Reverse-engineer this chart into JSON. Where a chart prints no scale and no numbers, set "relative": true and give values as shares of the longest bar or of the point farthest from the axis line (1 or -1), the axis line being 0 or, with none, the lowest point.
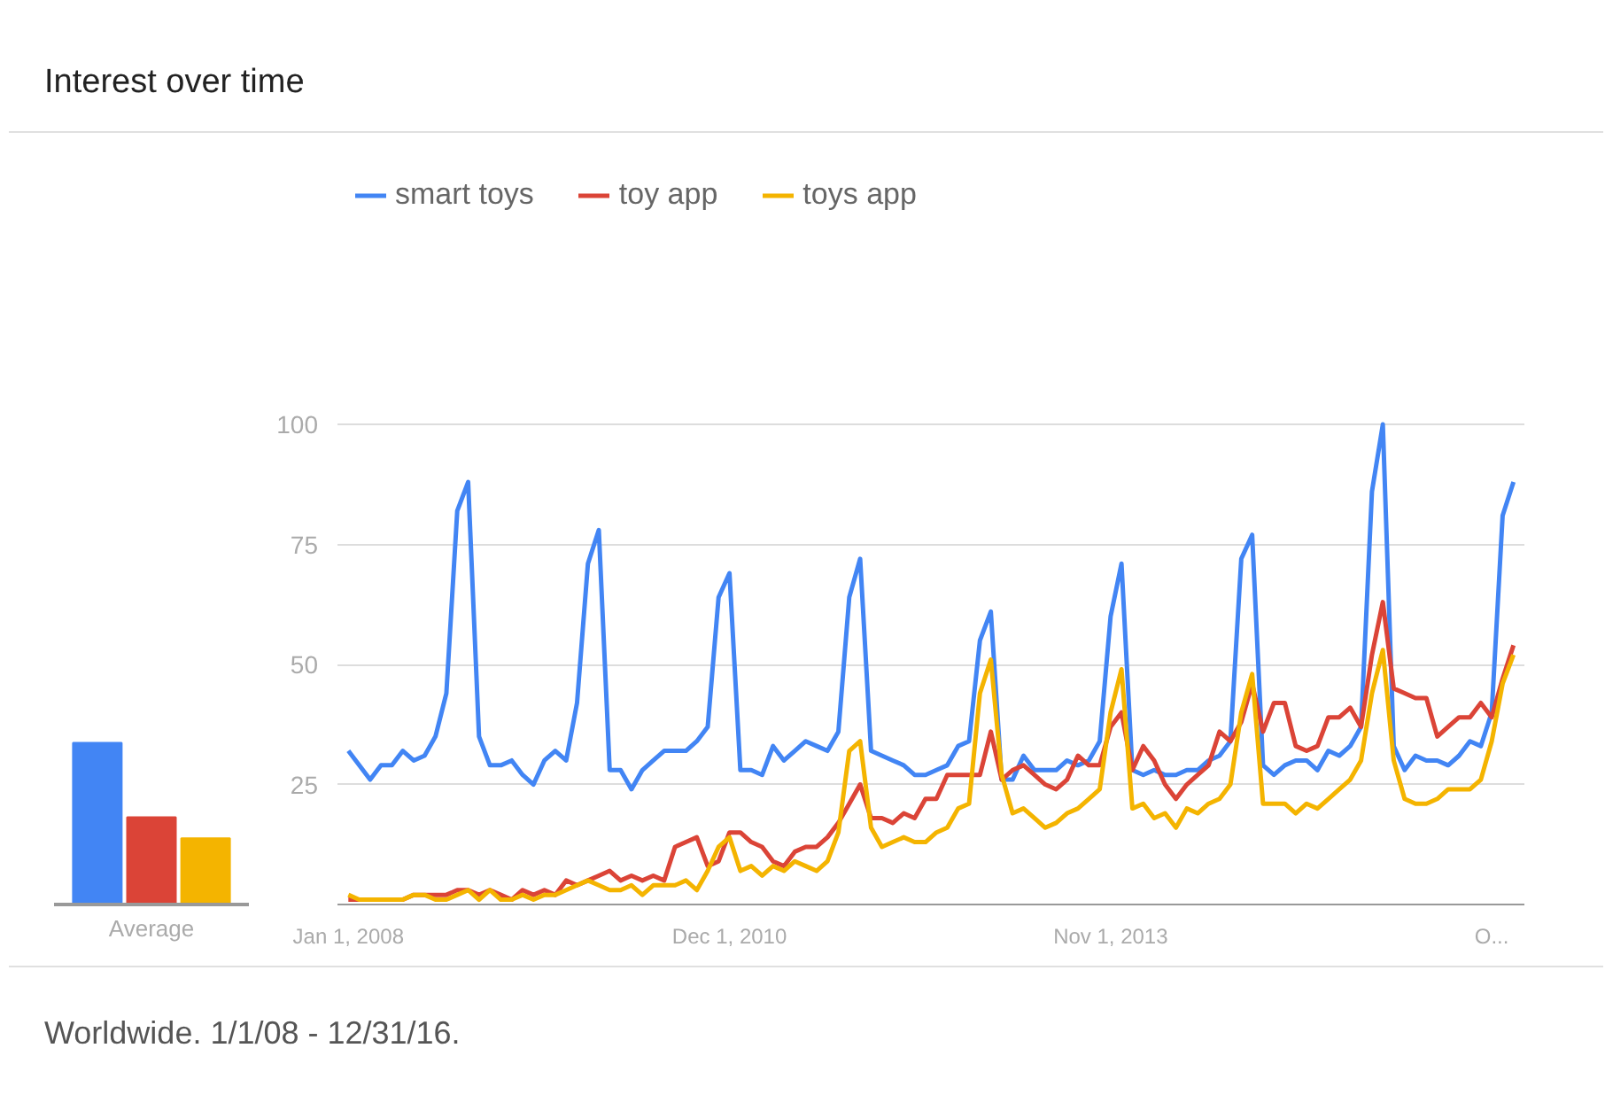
{
  "chart_data": [
    {
      "type": "line",
      "title": "Interest over time",
      "annotations": [
        "Worldwide. 1/1/08 - 12/31/16."
      ],
      "legend": "top left",
      "grid": "y",
      "marker": "none",
      "line_style": "solid",
      "x": [
        "2008-01",
        "2008-02",
        "2008-03",
        "2008-04",
        "2008-05",
        "2008-06",
        "2008-07",
        "2008-08",
        "2008-09",
        "2008-10",
        "2008-11",
        "2008-12",
        "2009-01",
        "2009-02",
        "2009-03",
        "2009-04",
        "2009-05",
        "2009-06",
        "2009-07",
        "2009-08",
        "2009-09",
        "2009-10",
        "2009-11",
        "2009-12",
        "2010-01",
        "2010-02",
        "2010-03",
        "2010-04",
        "2010-05",
        "2010-06",
        "2010-07",
        "2010-08",
        "2010-09",
        "2010-10",
        "2010-11",
        "2010-12",
        "2011-01",
        "2011-02",
        "2011-03",
        "2011-04",
        "2011-05",
        "2011-06",
        "2011-07",
        "2011-08",
        "2011-09",
        "2011-10",
        "2011-11",
        "2011-12",
        "2012-01",
        "2012-02",
        "2012-03",
        "2012-04",
        "2012-05",
        "2012-06",
        "2012-07",
        "2012-08",
        "2012-09",
        "2012-10",
        "2012-11",
        "2012-12",
        "2013-01",
        "2013-02",
        "2013-03",
        "2013-04",
        "2013-05",
        "2013-06",
        "2013-07",
        "2013-08",
        "2013-09",
        "2013-10",
        "2013-11",
        "2013-12",
        "2014-01",
        "2014-02",
        "2014-03",
        "2014-04",
        "2014-05",
        "2014-06",
        "2014-07",
        "2014-08",
        "2014-09",
        "2014-10",
        "2014-11",
        "2014-12",
        "2015-01",
        "2015-02",
        "2015-03",
        "2015-04",
        "2015-05",
        "2015-06",
        "2015-07",
        "2015-08",
        "2015-09",
        "2015-10",
        "2015-11",
        "2015-12",
        "2016-01",
        "2016-02",
        "2016-03",
        "2016-04",
        "2016-05",
        "2016-06",
        "2016-07",
        "2016-08",
        "2016-09",
        "2016-10",
        "2016-11",
        "2016-12"
      ],
      "xlim": [
        "2007-12",
        "2017-01"
      ],
      "xticks": [
        {
          "value": "2008-01",
          "label": "Jan 1, 2008"
        },
        {
          "value": "2010-12",
          "label": "Dec 1, 2010"
        },
        {
          "value": "2013-11",
          "label": "Nov 1, 2013"
        },
        {
          "value": "2016-10",
          "label": "O..."
        }
      ],
      "ylim": [
        0,
        100
      ],
      "yticks": [
        25,
        50,
        75,
        100
      ],
      "series": [
        {
          "name": "smart toys",
          "color": "#4285f4",
          "values": [
            32,
            29,
            26,
            29,
            29,
            32,
            30,
            31,
            35,
            44,
            82,
            88,
            35,
            29,
            29,
            30,
            27,
            25,
            30,
            32,
            30,
            42,
            71,
            78,
            28,
            28,
            24,
            28,
            30,
            32,
            32,
            32,
            34,
            37,
            64,
            69,
            28,
            28,
            27,
            33,
            30,
            32,
            34,
            33,
            32,
            36,
            64,
            72,
            32,
            31,
            30,
            29,
            27,
            27,
            28,
            29,
            33,
            34,
            55,
            61,
            26,
            26,
            31,
            28,
            28,
            28,
            30,
            29,
            30,
            34,
            60,
            71,
            28,
            27,
            28,
            27,
            27,
            28,
            28,
            30,
            31,
            34,
            72,
            77,
            29,
            27,
            29,
            30,
            30,
            28,
            32,
            31,
            33,
            37,
            86,
            100,
            33,
            28,
            31,
            30,
            30,
            29,
            31,
            34,
            33,
            40,
            81,
            88
          ]
        },
        {
          "name": "toy app",
          "color": "#db4437",
          "values": [
            1,
            1,
            1,
            1,
            1,
            1,
            2,
            2,
            2,
            2,
            3,
            3,
            2,
            3,
            2,
            1,
            3,
            2,
            3,
            2,
            5,
            4,
            5,
            6,
            7,
            5,
            6,
            5,
            6,
            5,
            12,
            13,
            14,
            8,
            9,
            15,
            15,
            13,
            12,
            9,
            8,
            11,
            12,
            12,
            14,
            17,
            21,
            25,
            18,
            18,
            17,
            19,
            18,
            22,
            22,
            27,
            27,
            27,
            27,
            36,
            26,
            28,
            29,
            27,
            25,
            24,
            26,
            31,
            29,
            29,
            37,
            40,
            28,
            33,
            30,
            25,
            22,
            25,
            27,
            29,
            36,
            34,
            38,
            46,
            36,
            42,
            42,
            33,
            32,
            33,
            39,
            39,
            41,
            37,
            52,
            63,
            45,
            44,
            43,
            43,
            35,
            37,
            39,
            39,
            42,
            39,
            47,
            54
          ]
        },
        {
          "name": "toys app",
          "color": "#f4b400",
          "values": [
            2,
            1,
            1,
            1,
            1,
            1,
            2,
            2,
            1,
            1,
            2,
            3,
            1,
            3,
            1,
            1,
            2,
            1,
            2,
            2,
            3,
            4,
            5,
            4,
            3,
            3,
            4,
            2,
            4,
            4,
            4,
            5,
            3,
            7,
            12,
            14,
            7,
            8,
            6,
            8,
            7,
            9,
            8,
            7,
            9,
            15,
            32,
            34,
            16,
            12,
            13,
            14,
            13,
            13,
            15,
            16,
            20,
            21,
            44,
            51,
            27,
            19,
            20,
            18,
            16,
            17,
            19,
            20,
            22,
            24,
            40,
            49,
            20,
            21,
            18,
            19,
            16,
            20,
            19,
            21,
            22,
            25,
            40,
            48,
            21,
            21,
            21,
            19,
            21,
            20,
            22,
            24,
            26,
            30,
            44,
            53,
            30,
            22,
            21,
            21,
            22,
            24,
            24,
            24,
            26,
            34,
            46,
            52
          ]
        }
      ]
    },
    {
      "type": "bar",
      "relative": true,
      "xlabel": "Average",
      "categories": [
        null,
        null,
        null
      ],
      "values": [
        1,
        0.54,
        0.41
      ],
      "colors": [
        "#4285f4",
        "#db4437",
        "#f4b400"
      ]
    }
  ]
}
